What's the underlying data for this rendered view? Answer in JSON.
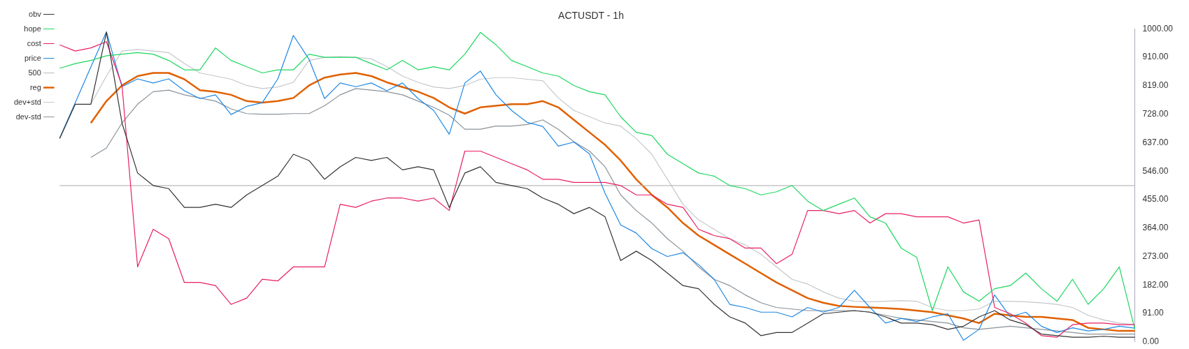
{
  "chart_data": {
    "type": "line",
    "title": "ACTUSDT - 1h",
    "categories": [
      null,
      null,
      null,
      null,
      null,
      null,
      null,
      null,
      null,
      null,
      null,
      null,
      null,
      null,
      null,
      null,
      null,
      null,
      null,
      null,
      null,
      null,
      null,
      null,
      null,
      null,
      null,
      null,
      null,
      null,
      null,
      null,
      null,
      null,
      null,
      null,
      null,
      null,
      null,
      null,
      null,
      null,
      null,
      null,
      null,
      null,
      null,
      null,
      null,
      null,
      null,
      null,
      null,
      null,
      null,
      null,
      null,
      null,
      null,
      null,
      null,
      null,
      null,
      null,
      null,
      null,
      null,
      null,
      null,
      null
    ],
    "series": [
      {
        "name": "obv",
        "color": "#333333",
        "values": [
          650,
          760,
          760,
          990,
          700,
          540,
          500,
          490,
          430,
          430,
          440,
          430,
          470,
          500,
          530,
          600,
          580,
          520,
          560,
          590,
          580,
          590,
          550,
          560,
          550,
          430,
          540,
          560,
          510,
          500,
          490,
          460,
          440,
          410,
          430,
          400,
          260,
          290,
          260,
          220,
          180,
          170,
          120,
          80,
          60,
          20,
          30,
          30,
          60,
          90,
          95,
          100,
          95,
          80,
          60,
          60,
          55,
          40,
          50,
          80,
          100,
          70,
          55,
          25,
          20,
          15,
          15,
          18,
          15,
          15
        ]
      },
      {
        "name": "hope",
        "color": "#1ed760",
        "values": [
          875,
          890,
          900,
          915,
          920,
          925,
          920,
          900,
          870,
          870,
          940,
          900,
          880,
          860,
          870,
          870,
          920,
          910,
          910,
          910,
          890,
          870,
          900,
          870,
          880,
          870,
          920,
          990,
          950,
          900,
          880,
          860,
          850,
          820,
          800,
          790,
          720,
          670,
          660,
          600,
          570,
          540,
          530,
          500,
          490,
          470,
          480,
          500,
          450,
          420,
          440,
          460,
          400,
          380,
          300,
          270,
          100,
          240,
          160,
          130,
          170,
          180,
          220,
          170,
          130,
          200,
          120,
          170,
          240,
          40
        ]
      },
      {
        "name": "cost",
        "color": "#e91e63",
        "values": [
          950,
          930,
          940,
          960,
          820,
          240,
          360,
          330,
          190,
          190,
          180,
          120,
          140,
          200,
          195,
          240,
          240,
          240,
          440,
          430,
          450,
          460,
          460,
          450,
          460,
          420,
          610,
          610,
          590,
          570,
          550,
          520,
          520,
          510,
          510,
          510,
          500,
          470,
          470,
          440,
          430,
          360,
          340,
          330,
          300,
          300,
          250,
          280,
          420,
          420,
          410,
          420,
          380,
          410,
          410,
          400,
          400,
          400,
          380,
          390,
          110,
          90,
          60,
          20,
          15,
          55,
          60,
          60,
          55,
          55
        ]
      },
      {
        "name": "price",
        "color": "#1e88e5",
        "values": [
          652,
          765,
          879,
          992,
          816,
          841,
          828,
          841,
          803,
          778,
          790,
          727,
          753,
          765,
          841,
          980,
          904,
          778,
          828,
          816,
          828,
          803,
          828,
          778,
          740,
          664,
          828,
          866,
          790,
          740,
          702,
          689,
          626,
          639,
          601,
          475,
          374,
          348,
          298,
          273,
          285,
          247,
          200,
          120,
          110,
          95,
          95,
          80,
          110,
          95,
          110,
          165,
          110,
          60,
          75,
          65,
          80,
          90,
          5,
          40,
          150,
          80,
          95,
          50,
          30,
          45,
          35,
          40,
          50,
          44
        ]
      },
      {
        "name": "500",
        "color": "#bbbbbb",
        "values": [
          500,
          500,
          500,
          500,
          500,
          500,
          500,
          500,
          500,
          500,
          500,
          500,
          500,
          500,
          500,
          500,
          500,
          500,
          500,
          500,
          500,
          500,
          500,
          500,
          500,
          500,
          500,
          500,
          500,
          500,
          500,
          500,
          500,
          500,
          500,
          500,
          500,
          500,
          500,
          500,
          500,
          500,
          500,
          500,
          500,
          500,
          500,
          500,
          500,
          500,
          500,
          500,
          500,
          500,
          500,
          500,
          500,
          500,
          500,
          500,
          500,
          500,
          500,
          500,
          500,
          500,
          500,
          500,
          500,
          500
        ]
      },
      {
        "name": "reg",
        "color": "#e06000",
        "values": [
          null,
          null,
          700,
          770,
          820,
          850,
          860,
          860,
          840,
          805,
          800,
          790,
          770,
          765,
          770,
          780,
          820,
          845,
          855,
          860,
          850,
          830,
          815,
          800,
          780,
          750,
          730,
          750,
          755,
          760,
          760,
          770,
          750,
          710,
          670,
          630,
          580,
          520,
          470,
          430,
          380,
          340,
          310,
          280,
          250,
          220,
          190,
          165,
          140,
          125,
          115,
          112,
          110,
          108,
          105,
          100,
          95,
          85,
          75,
          60,
          90,
          85,
          80,
          80,
          75,
          70,
          45,
          40,
          35,
          35
        ]
      },
      {
        "name": "dev+std",
        "color": "#c4c8cc",
        "values": [
          null,
          null,
          760,
          850,
          930,
          935,
          930,
          925,
          890,
          860,
          850,
          840,
          820,
          810,
          815,
          830,
          900,
          910,
          912,
          910,
          905,
          880,
          850,
          830,
          815,
          810,
          820,
          840,
          845,
          845,
          840,
          835,
          780,
          740,
          720,
          700,
          690,
          650,
          600,
          520,
          440,
          390,
          360,
          330,
          310,
          280,
          240,
          200,
          185,
          160,
          140,
          130,
          128,
          130,
          132,
          130,
          110,
          100,
          100,
          105,
          130,
          130,
          128,
          125,
          120,
          110,
          85,
          70,
          60,
          55
        ]
      },
      {
        "name": "dev-std",
        "color": "#8a9299",
        "values": [
          null,
          null,
          590,
          620,
          700,
          760,
          800,
          805,
          790,
          780,
          770,
          745,
          730,
          728,
          728,
          730,
          730,
          755,
          790,
          810,
          805,
          800,
          790,
          770,
          750,
          725,
          680,
          680,
          690,
          690,
          695,
          710,
          680,
          640,
          610,
          560,
          470,
          420,
          380,
          330,
          290,
          240,
          200,
          180,
          150,
          125,
          110,
          105,
          100,
          100,
          100,
          100,
          95,
          85,
          75,
          70,
          65,
          60,
          45,
          40,
          45,
          50,
          45,
          40,
          35,
          30,
          25,
          25,
          25,
          25
        ]
      }
    ],
    "ylim": [
      0,
      1000
    ],
    "yticks": [
      {
        "value": 0,
        "label": "0.00"
      },
      {
        "value": 91,
        "label": "91.00"
      },
      {
        "value": 182,
        "label": "182.00"
      },
      {
        "value": 273,
        "label": "273.00"
      },
      {
        "value": 364,
        "label": "364.00"
      },
      {
        "value": 455,
        "label": "455.00"
      },
      {
        "value": 546,
        "label": "546.00"
      },
      {
        "value": 637,
        "label": "637.00"
      },
      {
        "value": 728,
        "label": "728.00"
      },
      {
        "value": 819,
        "label": "819.00"
      },
      {
        "value": 910,
        "label": "910.00"
      },
      {
        "value": 1000,
        "label": "1000.00"
      }
    ],
    "legend": "top left",
    "grid": false,
    "marker": "none",
    "line_style": "solid",
    "tick_labels": "y"
  }
}
